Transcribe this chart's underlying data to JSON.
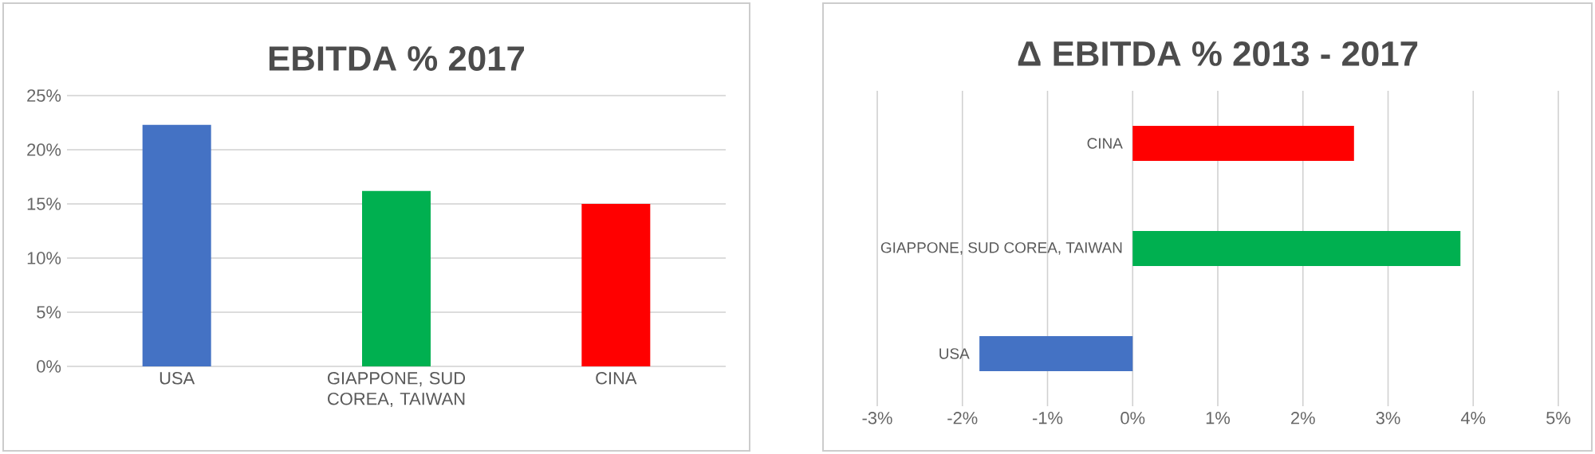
{
  "chart_data": [
    {
      "type": "bar",
      "title": "EBITDA % 2017",
      "categories": [
        "USA",
        "GIAPPONE, SUD COREA, TAIWAN",
        "CINA"
      ],
      "values": [
        22.3,
        16.2,
        15.0
      ],
      "colors": [
        "#4472c4",
        "#00b050",
        "#ff0000"
      ],
      "ylim": [
        0,
        25
      ],
      "yticks": [
        {
          "value": 0,
          "label": "0%"
        },
        {
          "value": 5,
          "label": "5%"
        },
        {
          "value": 10,
          "label": "10%"
        },
        {
          "value": 15,
          "label": "15%"
        },
        {
          "value": 20,
          "label": "20%"
        },
        {
          "value": 25,
          "label": "25%"
        }
      ],
      "grid": "y"
    },
    {
      "type": "bar",
      "orientation": "horizontal",
      "title": "Δ EBITDA % 2013 - 2017",
      "categories": [
        "CINA",
        "GIAPPONE, SUD COREA, TAIWAN",
        "USA"
      ],
      "values": [
        2.6,
        3.85,
        -1.8
      ],
      "colors": [
        "#ff0000",
        "#00b050",
        "#4472c4"
      ],
      "xlim": [
        -3,
        5
      ],
      "xticks": [
        {
          "value": -3,
          "label": "-3%"
        },
        {
          "value": -2,
          "label": "-2%"
        },
        {
          "value": -1,
          "label": "-1%"
        },
        {
          "value": 0,
          "label": "0%"
        },
        {
          "value": 1,
          "label": "1%"
        },
        {
          "value": 2,
          "label": "2%"
        },
        {
          "value": 3,
          "label": "3%"
        },
        {
          "value": 4,
          "label": "4%"
        },
        {
          "value": 5,
          "label": "5%"
        }
      ],
      "grid": "x"
    }
  ]
}
